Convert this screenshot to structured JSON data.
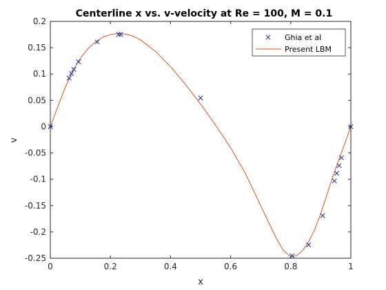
{
  "chart_data": {
    "type": "line",
    "title": "Centerline x vs. v-velocity at Re = 100, M = 0.1",
    "xlabel": "x",
    "ylabel": "v",
    "xlim": [
      0,
      1
    ],
    "ylim": [
      -0.25,
      0.2
    ],
    "xticks": [
      0,
      0.2,
      0.4,
      0.6,
      0.8,
      1
    ],
    "xtick_labels": [
      "0",
      "0.2",
      "0.4",
      "0.6",
      "0.8",
      "1"
    ],
    "yticks": [
      -0.25,
      -0.2,
      -0.15,
      -0.1,
      -0.05,
      0,
      0.05,
      0.1,
      0.15,
      0.2
    ],
    "ytick_labels": [
      "-0.25",
      "-0.2",
      "-0.15",
      "-0.1",
      "-0.05",
      "0",
      "0.05",
      "0.1",
      "0.15",
      "0.2"
    ],
    "grid": false,
    "legend_position": "top-right",
    "series": [
      {
        "name": "Ghia et al",
        "style": "markers",
        "marker": "x",
        "color": "#0d2a9a",
        "x": [
          0.0,
          0.0625,
          0.0703,
          0.0781,
          0.0938,
          0.1563,
          0.2266,
          0.2344,
          0.5,
          0.8047,
          0.8594,
          0.9063,
          0.9453,
          0.9531,
          0.9609,
          0.9688,
          1.0
        ],
        "y": [
          0.0,
          0.0923,
          0.1009,
          0.1089,
          0.1232,
          0.1608,
          0.1751,
          0.1753,
          0.0545,
          -0.2453,
          -0.2245,
          -0.1691,
          -0.1031,
          -0.0886,
          -0.0739,
          -0.0591,
          0.0
        ]
      },
      {
        "name": "Present LBM",
        "style": "line",
        "color": "#d95319",
        "x": [
          0,
          0.025,
          0.05,
          0.075,
          0.1,
          0.125,
          0.15,
          0.175,
          0.2,
          0.225,
          0.25,
          0.275,
          0.3,
          0.35,
          0.4,
          0.45,
          0.5,
          0.55,
          0.6,
          0.65,
          0.7,
          0.725,
          0.75,
          0.775,
          0.8,
          0.82,
          0.84,
          0.86,
          0.88,
          0.9,
          0.92,
          0.94,
          0.96,
          0.98,
          1.0
        ],
        "y": [
          0,
          0.038,
          0.075,
          0.106,
          0.13,
          0.148,
          0.161,
          0.17,
          0.175,
          0.177,
          0.176,
          0.172,
          0.165,
          0.143,
          0.114,
          0.08,
          0.043,
          0.003,
          -0.04,
          -0.09,
          -0.15,
          -0.18,
          -0.21,
          -0.235,
          -0.247,
          -0.245,
          -0.235,
          -0.218,
          -0.195,
          -0.165,
          -0.13,
          -0.095,
          -0.063,
          -0.032,
          0
        ]
      }
    ]
  }
}
